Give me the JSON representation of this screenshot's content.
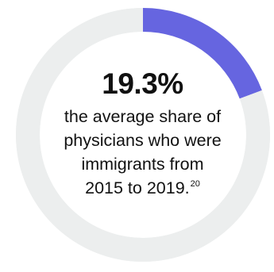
{
  "chart_data": {
    "type": "pie",
    "style": "donut",
    "values": [
      19.3,
      80.7
    ],
    "unit": "%",
    "colors": [
      "#6665e0",
      "#eceeee"
    ],
    "headline": "19.3%",
    "caption_lines": [
      "the average share of",
      "physicians who were",
      "immigrants from",
      "2015 to 2019."
    ],
    "footnote_ref": "20"
  }
}
